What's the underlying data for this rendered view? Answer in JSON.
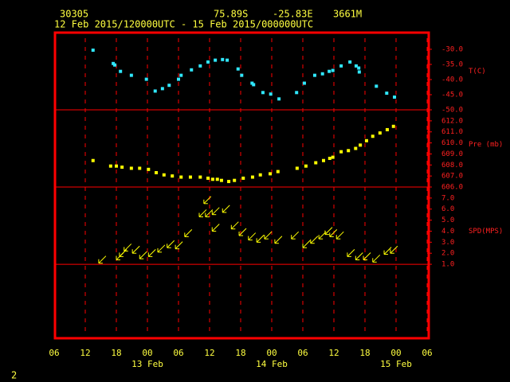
{
  "header": {
    "station": "30305",
    "lat": "75.89S",
    "lon": "-25.83E",
    "elev": "3661M",
    "period": "12 Feb 2015/120000UTC - 15 Feb 2015/000000UTC"
  },
  "footer": "2",
  "chart_data": [
    {
      "type": "scatter",
      "ylabel": "T(C)",
      "color": "#30e8ff",
      "ylim": [
        -50,
        -24.5
      ],
      "yticks": [
        {
          "value": -30,
          "label": "-30.0"
        },
        {
          "value": -35,
          "label": "-35.0"
        },
        {
          "value": -40,
          "label": "-40.0"
        },
        {
          "value": -45,
          "label": "-45.0"
        },
        {
          "value": -50,
          "label": "-50.0"
        }
      ],
      "x": [
        7.5,
        11.4,
        11.7,
        12.8,
        14.9,
        17.8,
        19.5,
        20.9,
        22.2,
        24.0,
        24.5,
        26.5,
        28.2,
        29.7,
        31.1,
        32.5,
        33.4,
        35.5,
        36.2,
        38.2,
        38.5,
        40.3,
        41.8,
        43.4,
        46.8,
        48.3,
        50.3,
        51.8,
        53.1,
        53.8,
        55.4,
        57.1,
        58.3,
        58.8,
        58.9,
        62.2,
        64.2,
        65.7
      ],
      "values": [
        -30.3,
        -34.7,
        -35.2,
        -37.3,
        -38.6,
        -39.9,
        -43.8,
        -43.0,
        -41.9,
        -39.9,
        -38.6,
        -36.8,
        -35.5,
        -34.2,
        -33.6,
        -33.4,
        -33.6,
        -36.5,
        -38.6,
        -41.2,
        -41.7,
        -44.3,
        -44.8,
        -46.4,
        -44.3,
        -41.2,
        -38.6,
        -38.1,
        -37.3,
        -37.0,
        -35.5,
        -34.2,
        -35.5,
        -36.2,
        -37.5,
        -42.2,
        -44.5,
        -45.8
      ]
    },
    {
      "type": "scatter",
      "ylabel": "Pre (mb)",
      "color": "#ffff00",
      "ylim": [
        606,
        613
      ],
      "yticks": [
        {
          "value": 612,
          "label": "612.0"
        },
        {
          "value": 611,
          "label": "611.0"
        },
        {
          "value": 610,
          "label": "610.0"
        },
        {
          "value": 609,
          "label": "609.0"
        },
        {
          "value": 608,
          "label": "608.0"
        },
        {
          "value": 607,
          "label": "607.0"
        },
        {
          "value": 606,
          "label": "606.0"
        }
      ],
      "x": [
        7.5,
        10.9,
        12.0,
        13.1,
        14.9,
        16.5,
        18.2,
        19.7,
        21.2,
        22.8,
        24.5,
        26.3,
        28.2,
        29.7,
        30.6,
        31.5,
        32.3,
        33.7,
        34.8,
        36.5,
        38.3,
        39.8,
        41.7,
        43.2,
        46.9,
        48.6,
        50.5,
        52.0,
        53.2,
        53.8,
        55.4,
        56.8,
        58.2,
        59.1,
        60.3,
        61.5,
        62.9,
        64.3,
        65.5
      ],
      "values": [
        608.4,
        607.9,
        607.9,
        607.8,
        607.7,
        607.7,
        607.6,
        607.3,
        607.1,
        607.0,
        606.9,
        606.9,
        606.9,
        606.8,
        606.7,
        606.7,
        606.6,
        606.5,
        606.6,
        606.8,
        606.9,
        607.1,
        607.2,
        607.4,
        607.7,
        607.9,
        608.2,
        608.4,
        608.6,
        608.7,
        609.2,
        609.3,
        609.5,
        609.8,
        610.2,
        610.6,
        610.9,
        611.2,
        611.5
      ]
    },
    {
      "type": "wind",
      "ylabel": "SPD(MPS)",
      "color": "#ffff00",
      "ylim": [
        -5.7,
        8.0
      ],
      "hline": 1.0,
      "yticks": [
        {
          "value": 7,
          "label": "7.0"
        },
        {
          "value": 6,
          "label": "6.0"
        },
        {
          "value": 5,
          "label": "5.0"
        },
        {
          "value": 4,
          "label": "4.0"
        },
        {
          "value": 3,
          "label": "3.0"
        },
        {
          "value": 2,
          "label": "2.0"
        },
        {
          "value": 1,
          "label": "1.0"
        }
      ],
      "x": [
        8.6,
        12.0,
        12.6,
        13.5,
        15.1,
        16.5,
        18.2,
        20.0,
        21.8,
        23.4,
        25.2,
        28.0,
        28.9,
        29.2,
        30.5,
        30.5,
        32.5,
        34.2,
        35.7,
        37.5,
        39.1,
        40.6,
        42.6,
        45.8,
        48.0,
        49.5,
        51.1,
        52.3,
        53.2,
        54.5,
        56.6,
        58.2,
        59.7,
        61.5,
        63.7,
        64.9
      ],
      "values": [
        1.1,
        1.4,
        1.7,
        2.2,
        2.0,
        1.5,
        1.7,
        2.1,
        2.5,
        2.4,
        3.5,
        5.3,
        6.5,
        5.3,
        5.5,
        4.0,
        5.7,
        4.2,
        3.6,
        3.2,
        3.0,
        3.3,
        2.9,
        3.3,
        2.5,
        2.9,
        3.3,
        3.7,
        3.5,
        3.3,
        1.7,
        1.4,
        1.4,
        1.2,
        1.9,
        2.0
      ],
      "xlim": [
        0,
        72
      ],
      "xticks": [
        {
          "value": 0,
          "label": "06"
        },
        {
          "value": 6,
          "label": "12"
        },
        {
          "value": 12,
          "label": "18"
        },
        {
          "value": 18,
          "label": "00"
        },
        {
          "value": 24,
          "label": "06"
        },
        {
          "value": 30,
          "label": "12"
        },
        {
          "value": 36,
          "label": "18"
        },
        {
          "value": 42,
          "label": "00"
        },
        {
          "value": 48,
          "label": "06"
        },
        {
          "value": 54,
          "label": "12"
        },
        {
          "value": 60,
          "label": "18"
        },
        {
          "value": 66,
          "label": "00"
        },
        {
          "value": 72,
          "label": "06"
        }
      ],
      "date_labels": [
        {
          "value": 18,
          "label": "13 Feb"
        },
        {
          "value": 42,
          "label": "14 Feb"
        },
        {
          "value": 66,
          "label": "15 Feb"
        }
      ]
    }
  ]
}
